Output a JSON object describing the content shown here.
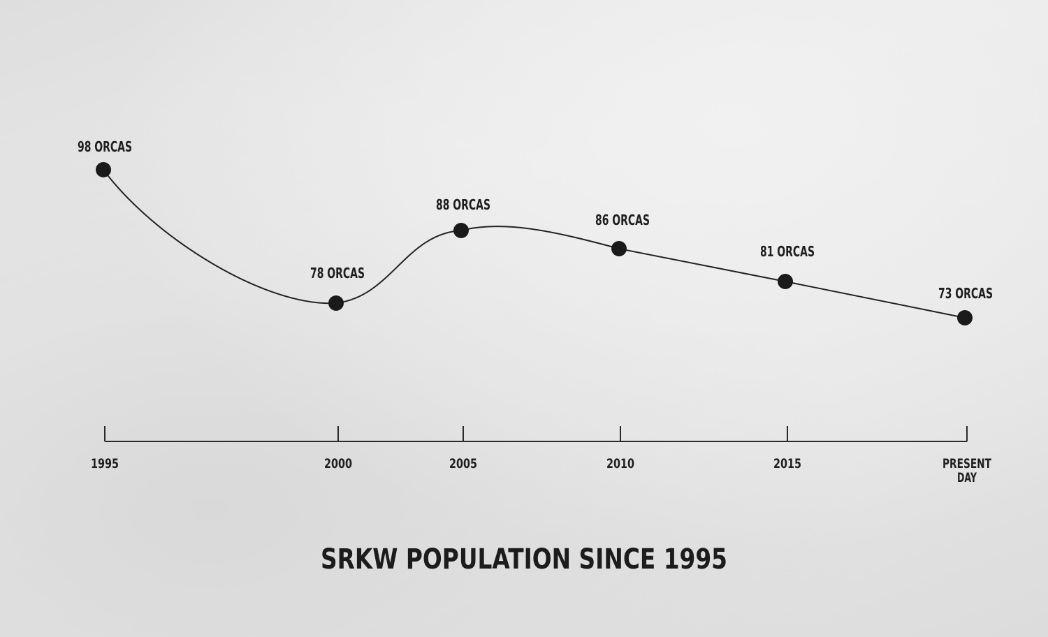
{
  "chart_data": {
    "type": "line",
    "title": "SRKW POPULATION SINCE 1995",
    "xlabel": "",
    "ylabel": "",
    "categories": [
      "1995",
      "2000",
      "2005",
      "2010",
      "2015",
      "PRESENT DAY"
    ],
    "x": [
      1995,
      2000,
      2005,
      2010,
      2015,
      "PRESENT DAY"
    ],
    "values": [
      98,
      78,
      88,
      86,
      81,
      73
    ],
    "data_labels": [
      "98 ORCAS",
      "78 ORCAS",
      "88 ORCAS",
      "86 ORCAS",
      "81 ORCAS",
      "73 ORCAS"
    ],
    "tick_labels": [
      [
        "1995"
      ],
      [
        "2000"
      ],
      [
        "2005"
      ],
      [
        "2010"
      ],
      [
        "2015"
      ],
      [
        "PRESENT",
        "DAY"
      ]
    ],
    "grid": false,
    "legend": "none",
    "smooth": true,
    "colors": {
      "line": "#222222",
      "marker": "#1a1a1a",
      "text": "#1e1e1e",
      "axis": "#2a2a2a"
    }
  }
}
